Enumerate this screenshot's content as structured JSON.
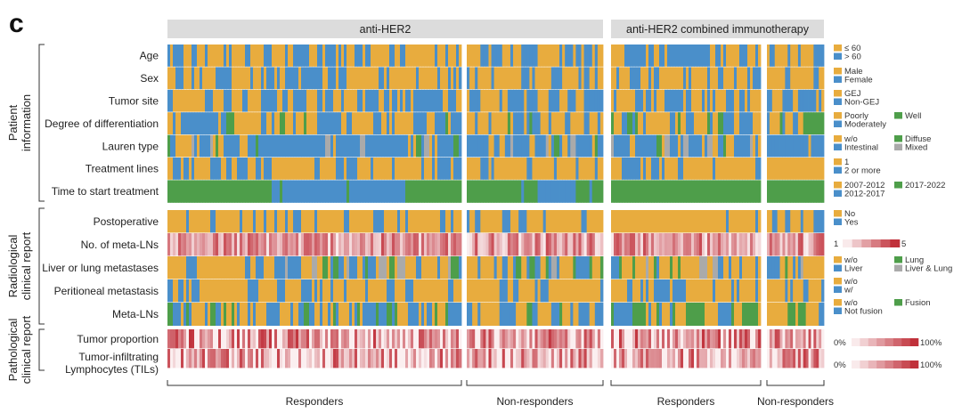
{
  "panel_letter": "c",
  "chart_data": {
    "type": "heatmap",
    "groups": [
      {
        "label": "anti-HER2",
        "subgroups": [
          {
            "label": "Responders",
            "n": 110
          },
          {
            "label": "Non-responders",
            "n": 50
          }
        ]
      },
      {
        "label": "anti-HER2 combined immunotherapy",
        "subgroups": [
          {
            "label": "Responders",
            "n": 56
          },
          {
            "label": "Non-responders",
            "n": 22
          }
        ]
      }
    ],
    "sections": [
      {
        "label": [
          "Patient",
          "information"
        ],
        "rows": [
          "Age",
          "Sex",
          "Tumor site",
          "Degree of differentiation",
          "Lauren type",
          "Treatment lines",
          "Time to start treatment"
        ]
      },
      {
        "label": [
          "Radiological",
          "clinical report"
        ],
        "rows": [
          "Postoperative",
          "No. of meta-LNs",
          "Liver or lung metastases",
          "Peritioneal metastasis",
          "Meta-LNs"
        ]
      },
      {
        "label": [
          "Pathological",
          "clinical report"
        ],
        "rows": [
          "Tumor proportion",
          [
            "Tumor-infiltrating",
            "Lymphocytes (TILs)"
          ]
        ]
      }
    ],
    "legends": [
      {
        "row": "Age",
        "items": [
          {
            "label": "≤ 60",
            "color": "#e8ac3e"
          },
          {
            "label": "> 60",
            "color": "#4a8fca"
          }
        ]
      },
      {
        "row": "Sex",
        "items": [
          {
            "label": "Male",
            "color": "#e8ac3e"
          },
          {
            "label": "Female",
            "color": "#4a8fca"
          }
        ]
      },
      {
        "row": "Tumor site",
        "items": [
          {
            "label": "GEJ",
            "color": "#e8ac3e"
          },
          {
            "label": "Non-GEJ",
            "color": "#4a8fca"
          }
        ]
      },
      {
        "row": "Degree of differentiation",
        "items": [
          {
            "label": "Poorly",
            "color": "#e8ac3e"
          },
          {
            "label": "Moderately",
            "color": "#4a8fca"
          },
          {
            "label": "Well",
            "color": "#4e9e4a"
          }
        ]
      },
      {
        "row": "Lauren type",
        "items": [
          {
            "label": "w/o",
            "color": "#e8ac3e"
          },
          {
            "label": "Intestinal",
            "color": "#4a8fca"
          },
          {
            "label": "Diffuse",
            "color": "#4e9e4a"
          },
          {
            "label": "Mixed",
            "color": "#aaaaaa"
          }
        ]
      },
      {
        "row": "Treatment lines",
        "items": [
          {
            "label": "1",
            "color": "#e8ac3e"
          },
          {
            "label": "2 or more",
            "color": "#4a8fca"
          }
        ]
      },
      {
        "row": "Time to start treatment",
        "items": [
          {
            "label": "2007-2012",
            "color": "#e8ac3e"
          },
          {
            "label": "2012-2017",
            "color": "#4a8fca"
          },
          {
            "label": "2017-2022",
            "color": "#4e9e4a"
          }
        ]
      },
      {
        "row": "Postoperative",
        "items": [
          {
            "label": "No",
            "color": "#e8ac3e"
          },
          {
            "label": "Yes",
            "color": "#4a8fca"
          }
        ]
      },
      {
        "row": "No. of meta-LNs",
        "gradient": {
          "min": "1",
          "max": "5",
          "color": "#c0303a"
        }
      },
      {
        "row": "Liver or lung metastases",
        "items": [
          {
            "label": "w/o",
            "color": "#e8ac3e"
          },
          {
            "label": "Liver",
            "color": "#4a8fca"
          },
          {
            "label": "Lung",
            "color": "#4e9e4a"
          },
          {
            "label": "Liver & Lung",
            "color": "#aaaaaa"
          }
        ]
      },
      {
        "row": "Peritioneal metastasis",
        "items": [
          {
            "label": "w/o",
            "color": "#e8ac3e"
          },
          {
            "label": "w/",
            "color": "#4a8fca"
          }
        ]
      },
      {
        "row": "Meta-LNs",
        "items": [
          {
            "label": "w/o",
            "color": "#e8ac3e"
          },
          {
            "label": "Not fusion",
            "color": "#4a8fca"
          },
          {
            "label": "Fusion",
            "color": "#4e9e4a"
          }
        ]
      },
      {
        "row": "Tumor proportion",
        "gradient": {
          "min": "0%",
          "max": "100%",
          "color": "#c0303a"
        }
      },
      {
        "row": "TILs",
        "gradient": {
          "min": "0%",
          "max": "100%",
          "color": "#c0303a"
        }
      }
    ]
  }
}
